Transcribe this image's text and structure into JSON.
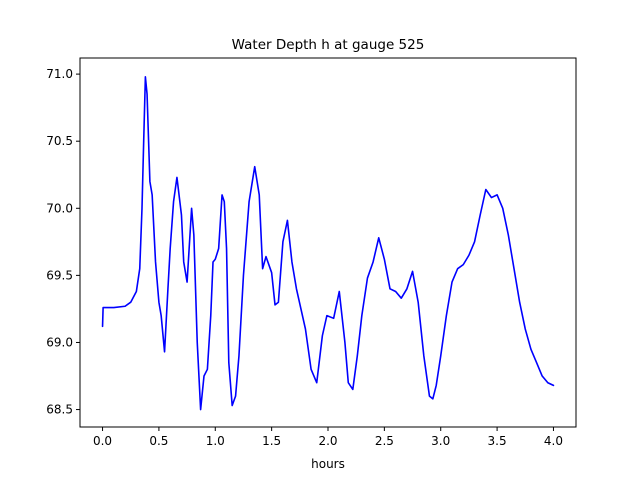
{
  "chart_data": {
    "type": "line",
    "title": "Water Depth h at gauge 525",
    "xlabel": "hours",
    "ylabel": "",
    "xlim": [
      -0.2,
      4.2
    ],
    "ylim": [
      68.37,
      71.12
    ],
    "xticks": [
      0.0,
      0.5,
      1.0,
      1.5,
      2.0,
      2.5,
      3.0,
      3.5,
      4.0
    ],
    "xtick_labels": [
      "0.0",
      "0.5",
      "1.0",
      "1.5",
      "2.0",
      "2.5",
      "3.0",
      "3.5",
      "4.0"
    ],
    "yticks": [
      68.5,
      69.0,
      69.5,
      70.0,
      70.5,
      71.0
    ],
    "ytick_labels": [
      "68.5",
      "69.0",
      "69.5",
      "70.0",
      "70.5",
      "71.0"
    ],
    "grid": false,
    "line_color": "#0000ff",
    "series": [
      {
        "x": [
          0.0,
          0.005,
          0.1,
          0.2,
          0.25,
          0.3,
          0.33,
          0.35,
          0.365,
          0.38,
          0.395,
          0.42,
          0.44,
          0.47,
          0.5,
          0.52,
          0.55,
          0.58,
          0.6,
          0.63,
          0.66,
          0.7,
          0.72,
          0.75,
          0.79,
          0.81,
          0.84,
          0.87,
          0.9,
          0.93,
          0.96,
          0.98,
          1.0,
          1.03,
          1.06,
          1.08,
          1.1,
          1.12,
          1.15,
          1.18,
          1.21,
          1.25,
          1.3,
          1.35,
          1.39,
          1.42,
          1.45,
          1.5,
          1.53,
          1.56,
          1.6,
          1.64,
          1.68,
          1.72,
          1.76,
          1.8,
          1.85,
          1.9,
          1.95,
          1.99,
          2.05,
          2.1,
          2.15,
          2.18,
          2.22,
          2.26,
          2.3,
          2.35,
          2.4,
          2.45,
          2.5,
          2.55,
          2.6,
          2.65,
          2.7,
          2.75,
          2.8,
          2.85,
          2.9,
          2.93,
          2.96,
          3.0,
          3.05,
          3.1,
          3.15,
          3.2,
          3.25,
          3.3,
          3.35,
          3.4,
          3.45,
          3.5,
          3.55,
          3.6,
          3.65,
          3.7,
          3.75,
          3.8,
          3.85,
          3.9,
          3.95,
          4.0
        ],
        "y": [
          69.12,
          69.26,
          69.26,
          69.27,
          69.3,
          69.38,
          69.55,
          70.0,
          70.5,
          70.98,
          70.85,
          70.2,
          70.1,
          69.6,
          69.3,
          69.2,
          68.93,
          69.4,
          69.7,
          70.05,
          70.23,
          69.95,
          69.6,
          69.45,
          70.0,
          69.8,
          69.0,
          68.5,
          68.75,
          68.8,
          69.2,
          69.6,
          69.62,
          69.7,
          70.1,
          70.05,
          69.7,
          68.85,
          68.53,
          68.6,
          68.9,
          69.5,
          70.05,
          70.31,
          70.1,
          69.55,
          69.64,
          69.52,
          69.28,
          69.3,
          69.75,
          69.91,
          69.6,
          69.4,
          69.25,
          69.1,
          68.8,
          68.7,
          69.05,
          69.2,
          69.18,
          69.38,
          69.0,
          68.7,
          68.65,
          68.9,
          69.2,
          69.48,
          69.6,
          69.78,
          69.62,
          69.4,
          69.38,
          69.33,
          69.4,
          69.53,
          69.3,
          68.9,
          68.6,
          68.58,
          68.68,
          68.9,
          69.2,
          69.45,
          69.55,
          69.58,
          69.65,
          69.75,
          69.95,
          70.14,
          70.08,
          70.1,
          70.0,
          69.8,
          69.55,
          69.3,
          69.1,
          68.95,
          68.85,
          68.75,
          68.7,
          68.68
        ]
      }
    ]
  }
}
